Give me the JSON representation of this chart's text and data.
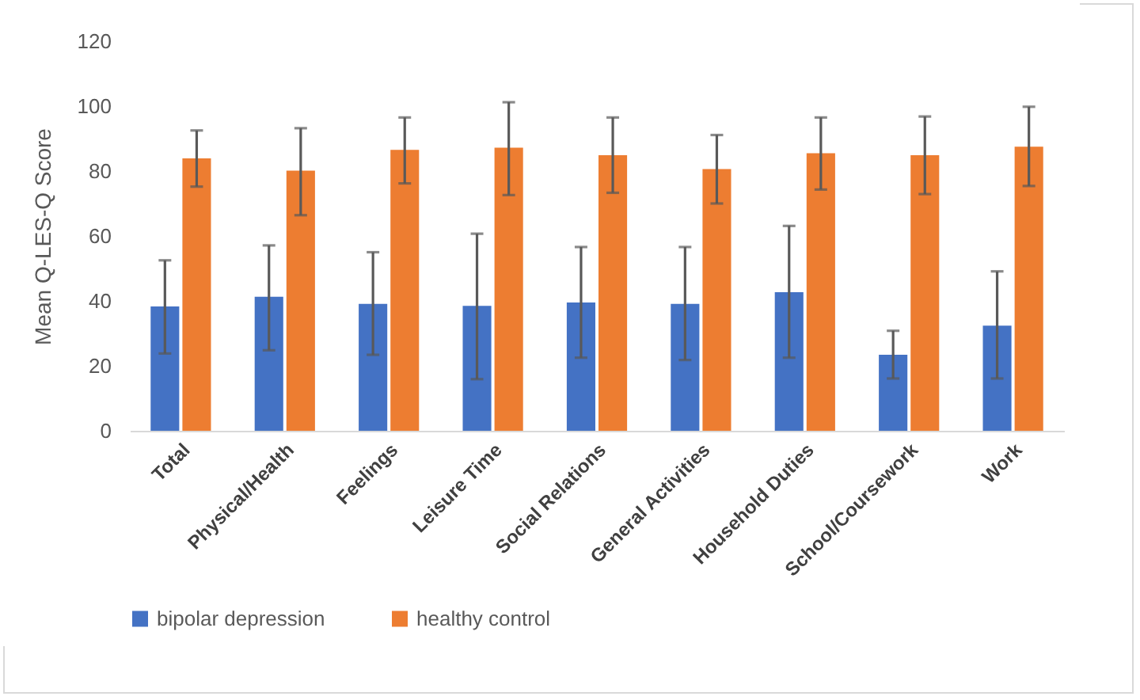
{
  "chart_data": {
    "type": "bar",
    "ylabel": "Mean Q-LES-Q Score",
    "categories": [
      "Total",
      "Physical/Health",
      "Feelings",
      "Leisure Time",
      "Social Relations",
      "General Activities",
      "Household Duties",
      "School/Coursework",
      "Work"
    ],
    "series": [
      {
        "name": "bipolar depression",
        "color": "#4472c4",
        "values": [
          38.3,
          41.3,
          39.1,
          38.5,
          39.5,
          39.1,
          42.7,
          23.4,
          32.4
        ],
        "errors": [
          [
            23.8,
            52.5
          ],
          [
            24.8,
            57.1
          ],
          [
            23.4,
            55
          ],
          [
            15.9,
            60.7
          ],
          [
            22.5,
            56.6
          ],
          [
            21.8,
            56.6
          ],
          [
            22.5,
            63.1
          ],
          [
            16.1,
            30.8
          ],
          [
            16.1,
            49.1
          ]
        ]
      },
      {
        "name": "healthy control",
        "color": "#ed7d31",
        "values": [
          83.9,
          80.1,
          86.5,
          87.2,
          84.9,
          80.6,
          85.5,
          84.9,
          87.5
        ],
        "errors": [
          [
            75.2,
            92.5
          ],
          [
            66.4,
            93.2
          ],
          [
            76.2,
            96.5
          ],
          [
            72.6,
            101.2
          ],
          [
            73.3,
            96.5
          ],
          [
            70,
            91.1
          ],
          [
            74.3,
            96.5
          ],
          [
            72.9,
            96.8
          ],
          [
            75.4,
            99.8
          ]
        ]
      }
    ],
    "ylim": [
      0,
      120
    ],
    "yticks": [
      0,
      20,
      40,
      60,
      80,
      100,
      120
    ],
    "grid": false,
    "legend": "bottom"
  }
}
